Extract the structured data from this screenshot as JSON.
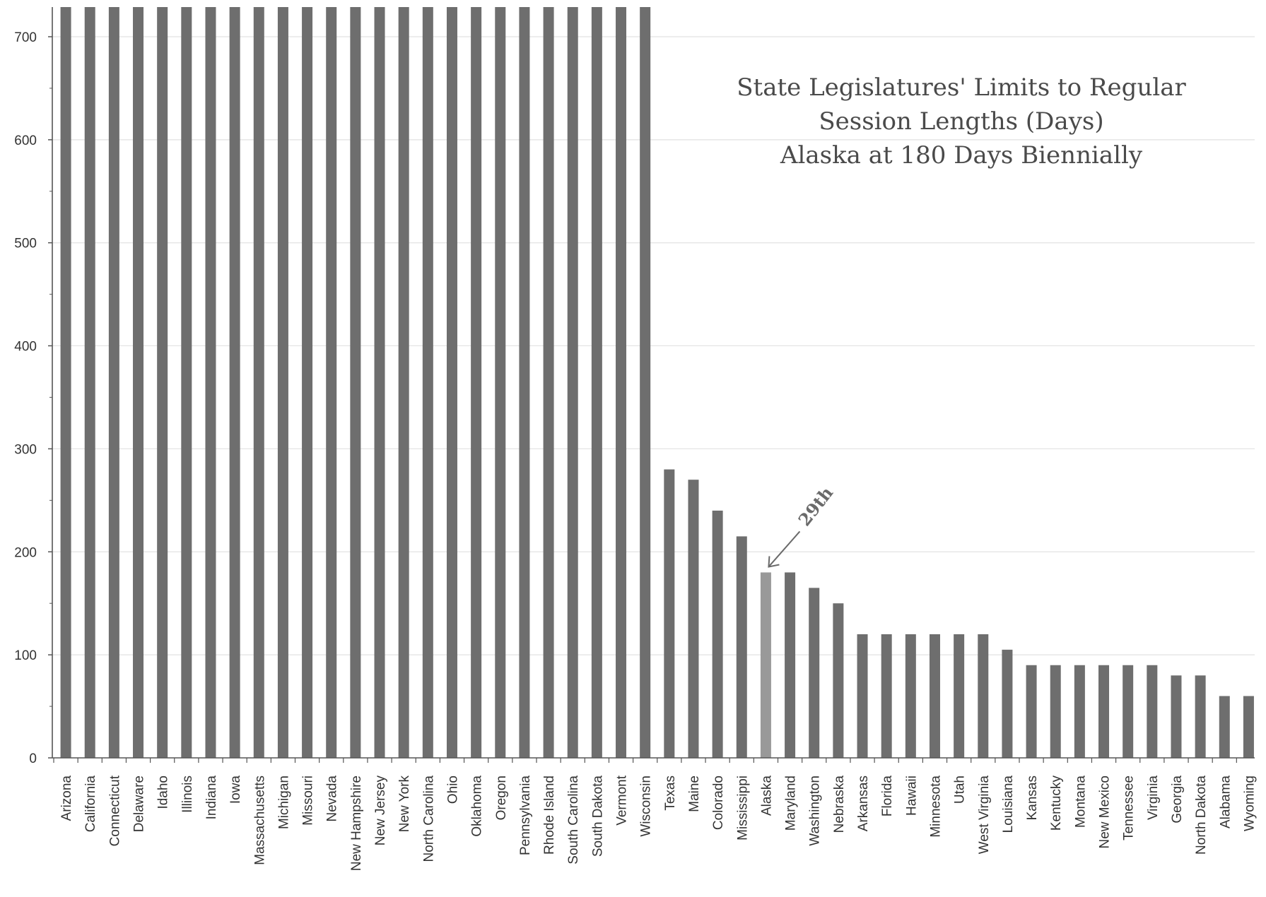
{
  "chart_data": {
    "type": "bar",
    "title_lines": [
      "State Legislatures' Limits to Regular",
      "Session Lengths  (Days)",
      "Alaska at 180 Days Biennially"
    ],
    "xlabel": "",
    "ylabel": "",
    "ylim": [
      0,
      700
    ],
    "ytick_step": 100,
    "grid": true,
    "categories": [
      "Arizona",
      "California",
      "Connecticut",
      "Delaware",
      "Idaho",
      "Illinois",
      "Indiana",
      "Iowa",
      "Massachusetts",
      "Michigan",
      "Missouri",
      "Nevada",
      "New Hampshire",
      "New Jersey",
      "New York",
      "North Carolina",
      "Ohio",
      "Oklahoma",
      "Oregon",
      "Pennsylvania",
      "Rhode Island",
      "South Carolina",
      "South Dakota",
      "Vermont",
      "Wisconsin",
      "Texas",
      "Maine",
      "Colorado",
      "Mississippi",
      "Alaska",
      "Maryland",
      "Washington",
      "Nebraska",
      "Arkansas",
      "Florida",
      "Hawaii",
      "Minnesota",
      "Utah",
      "West Virginia",
      "Louisiana",
      "Kansas",
      "Kentucky",
      "Montana",
      "New Mexico",
      "Tennessee",
      "Virginia",
      "Georgia",
      "North Dakota",
      "Alabama",
      "Wyoming"
    ],
    "values": [
      730,
      730,
      730,
      730,
      730,
      730,
      730,
      730,
      730,
      730,
      730,
      730,
      730,
      730,
      730,
      730,
      730,
      730,
      730,
      730,
      730,
      730,
      730,
      730,
      730,
      280,
      270,
      240,
      215,
      180,
      180,
      165,
      150,
      120,
      120,
      120,
      120,
      120,
      120,
      105,
      90,
      90,
      90,
      90,
      90,
      90,
      80,
      80,
      60,
      60
    ],
    "highlight_category": "Alaska",
    "colors": {
      "bar": "#6e6e6e",
      "highlight": "#999999",
      "grid": "#e2e2e2",
      "axis": "#555555",
      "annotation": "#6a6a6a"
    },
    "annotation": {
      "text": "29th",
      "target": "Alaska"
    }
  }
}
